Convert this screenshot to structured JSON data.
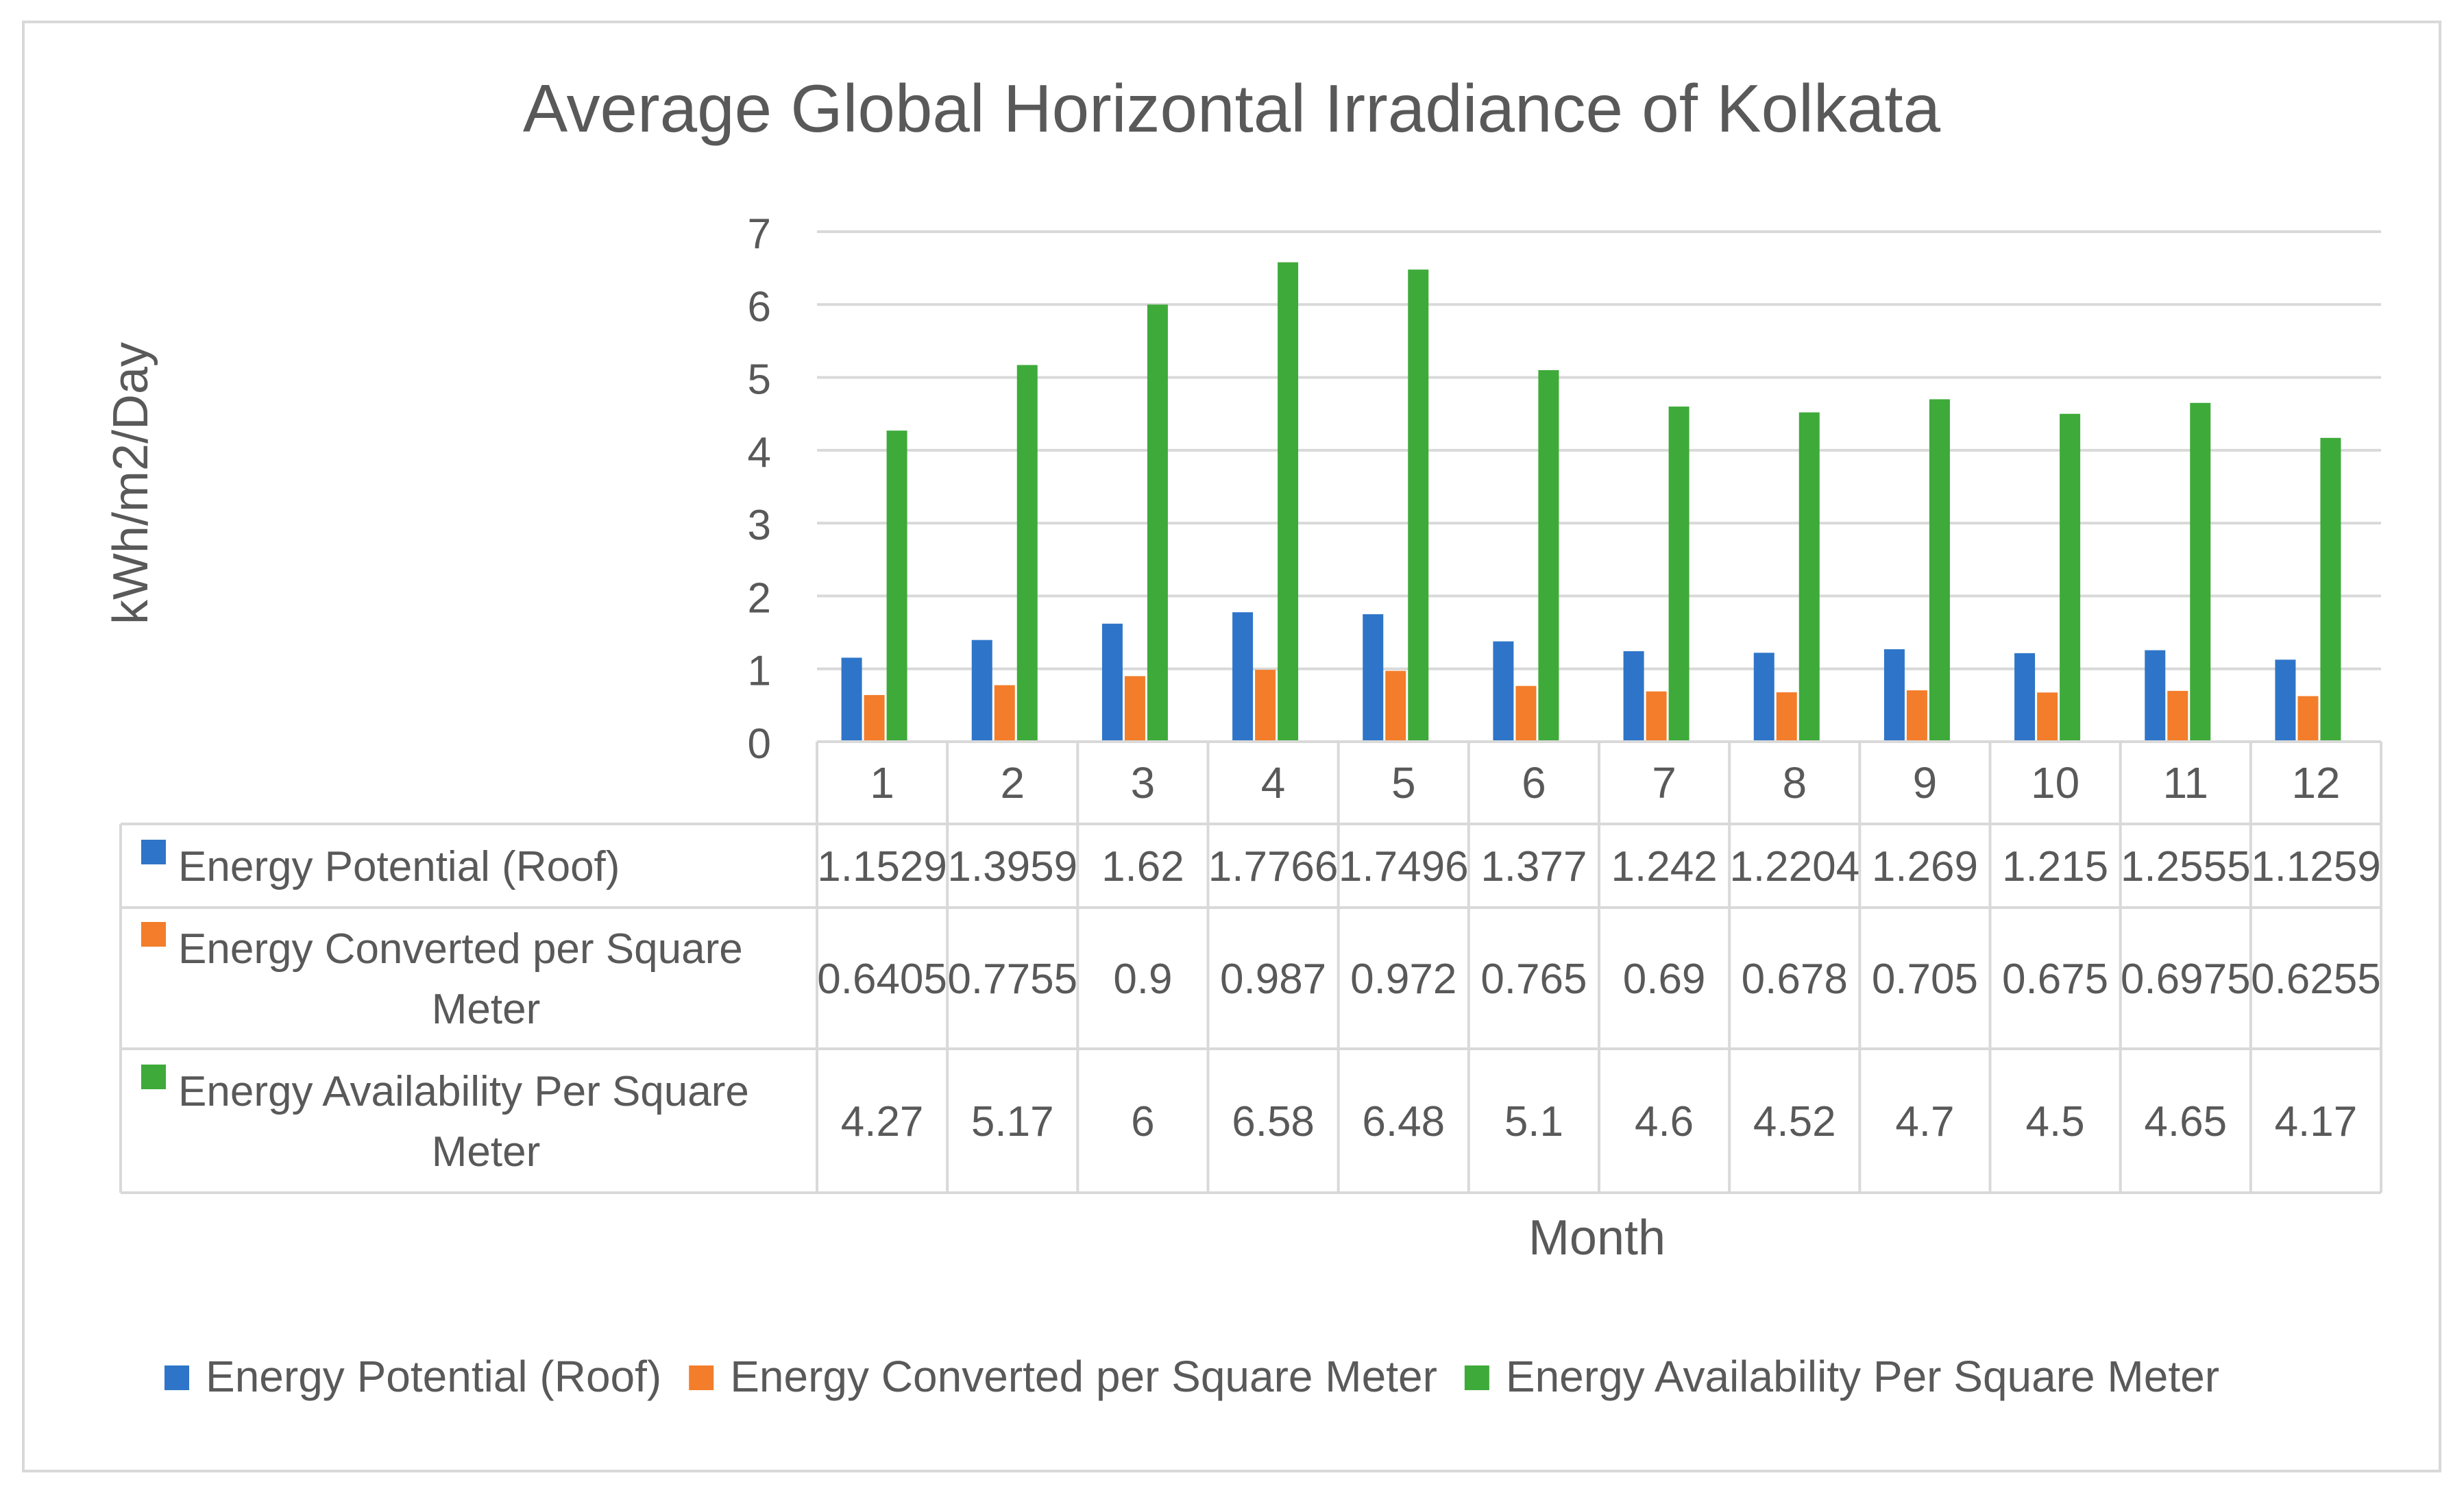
{
  "chart_data": {
    "type": "bar",
    "title": "Average Global Horizontal Irradiance of Kolkata",
    "xlabel": "Month",
    "ylabel": "kWh/m2/Day",
    "ylim": [
      0,
      7
    ],
    "yticks": [
      "0",
      "1",
      "2",
      "3",
      "4",
      "5",
      "6",
      "7"
    ],
    "grid": true,
    "legend_position": "bottom",
    "categories": [
      "1",
      "2",
      "3",
      "4",
      "5",
      "6",
      "7",
      "8",
      "9",
      "10",
      "11",
      "12"
    ],
    "series": [
      {
        "name": "Energy Potential (Roof)",
        "table_label": [
          "Energy Potential (Roof)"
        ],
        "color": "#2e75c9",
        "values": [
          1.1529,
          1.3959,
          1.62,
          1.7766,
          1.7496,
          1.377,
          1.242,
          1.2204,
          1.269,
          1.215,
          1.2555,
          1.1259
        ],
        "labels": [
          "1.1529",
          "1.3959",
          "1.62",
          "1.7766",
          "1.7496",
          "1.377",
          "1.242",
          "1.2204",
          "1.269",
          "1.215",
          "1.2555",
          "1.1259"
        ]
      },
      {
        "name": "Energy Converted per Square Meter",
        "table_label": [
          "Energy Converted per Square",
          "Meter"
        ],
        "color": "#f37d2a",
        "values": [
          0.6405,
          0.7755,
          0.9,
          0.987,
          0.972,
          0.765,
          0.69,
          0.678,
          0.705,
          0.675,
          0.6975,
          0.6255
        ],
        "labels": [
          "0.6405",
          "0.7755",
          "0.9",
          "0.987",
          "0.972",
          "0.765",
          "0.69",
          "0.678",
          "0.705",
          "0.675",
          "0.6975",
          "0.6255"
        ]
      },
      {
        "name": "Energy Availability Per Square Meter",
        "table_label": [
          "Energy Availability Per Square",
          "Meter"
        ],
        "color": "#3eaa3a",
        "values": [
          4.27,
          5.17,
          6,
          6.58,
          6.48,
          5.1,
          4.6,
          4.52,
          4.7,
          4.5,
          4.65,
          4.17
        ],
        "labels": [
          "4.27",
          "5.17",
          "6",
          "6.58",
          "6.48",
          "5.1",
          "4.6",
          "4.52",
          "4.7",
          "4.5",
          "4.65",
          "4.17"
        ]
      }
    ]
  }
}
